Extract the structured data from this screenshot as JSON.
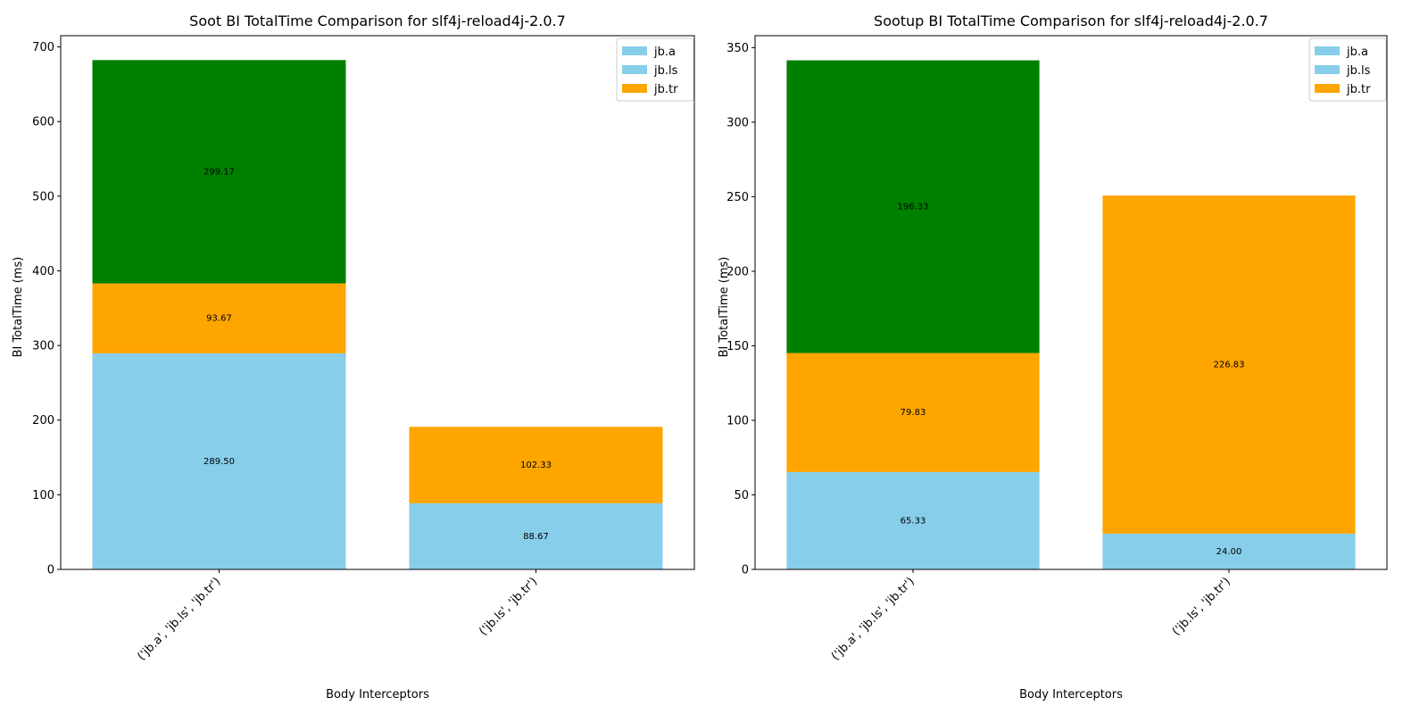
{
  "chart_data": [
    {
      "type": "bar",
      "stacked": true,
      "title": "Soot BI TotalTime Comparison for slf4j-reload4j-2.0.7",
      "xlabel": "Body Interceptors",
      "ylabel": "BI TotalTime (ms)",
      "ylim": [
        0,
        715
      ],
      "yticks": [
        0,
        100,
        200,
        300,
        400,
        500,
        600,
        700
      ],
      "grid": false,
      "legend_position": "top-right",
      "categories": [
        "('jb.a', 'jb.ls', 'jb.tr')",
        "('jb.ls', 'jb.tr')"
      ],
      "segments": [
        [
          {
            "value": 289.5,
            "label": "289.50",
            "color": "#87CEEB"
          },
          {
            "value": 93.67,
            "label": "93.67",
            "color": "#FFA500"
          },
          {
            "value": 299.17,
            "label": "299.17",
            "color": "#008000"
          }
        ],
        [
          {
            "value": 88.67,
            "label": "88.67",
            "color": "#87CEEB"
          },
          {
            "value": 102.33,
            "label": "102.33",
            "color": "#FFA500"
          }
        ]
      ],
      "legend": [
        {
          "name": "jb.a",
          "color": "#87CEEB"
        },
        {
          "name": "jb.ls",
          "color": "#87CEEB"
        },
        {
          "name": "jb.tr",
          "color": "#FFA500"
        }
      ]
    },
    {
      "type": "bar",
      "stacked": true,
      "title": "Sootup BI TotalTime Comparison for slf4j-reload4j-2.0.7",
      "xlabel": "Body Interceptors",
      "ylabel": "BI TotalTime (ms)",
      "ylim": [
        0,
        358
      ],
      "yticks": [
        0,
        50,
        100,
        150,
        200,
        250,
        300,
        350
      ],
      "grid": false,
      "legend_position": "top-right",
      "categories": [
        "('jb.a', 'jb.ls', 'jb.tr')",
        "('jb.ls', 'jb.tr')"
      ],
      "segments": [
        [
          {
            "value": 65.33,
            "label": "65.33",
            "color": "#87CEEB"
          },
          {
            "value": 79.83,
            "label": "79.83",
            "color": "#FFA500"
          },
          {
            "value": 196.33,
            "label": "196.33",
            "color": "#008000"
          }
        ],
        [
          {
            "value": 24.0,
            "label": "24.00",
            "color": "#87CEEB"
          },
          {
            "value": 226.83,
            "label": "226.83",
            "color": "#FFA500"
          }
        ]
      ],
      "legend": [
        {
          "name": "jb.a",
          "color": "#87CEEB"
        },
        {
          "name": "jb.ls",
          "color": "#87CEEB"
        },
        {
          "name": "jb.tr",
          "color": "#FFA500"
        }
      ]
    }
  ]
}
